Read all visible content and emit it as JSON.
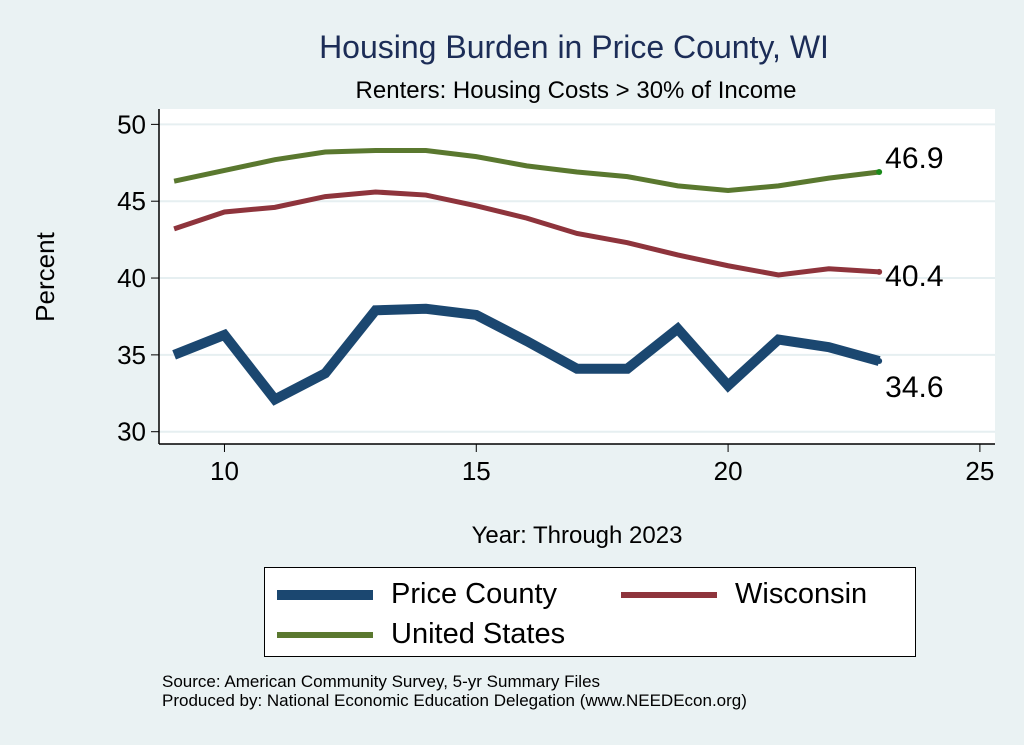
{
  "chart_data": {
    "type": "line",
    "title": "Housing Burden in Price County, WI",
    "subtitle": "Renters: Housing Costs > 30% of Income",
    "xlabel": "Year: Through 2023",
    "ylabel": "Percent",
    "xlim": [
      8.7,
      25.3
    ],
    "ylim": [
      29.2,
      51.0
    ],
    "xticks": [
      10,
      15,
      20,
      25
    ],
    "yticks": [
      30,
      35,
      40,
      45,
      50
    ],
    "grid": "horizontal",
    "legend_position": "bottom",
    "x": [
      9,
      10,
      11,
      12,
      13,
      14,
      15,
      16,
      17,
      18,
      19,
      20,
      21,
      22,
      23
    ],
    "series": [
      {
        "name": "Price County",
        "color": "#1b4770",
        "values": [
          35.0,
          36.3,
          32.1,
          33.8,
          37.9,
          38.0,
          37.6,
          35.9,
          34.1,
          34.1,
          36.7,
          33.0,
          36.0,
          35.5,
          34.6
        ],
        "end_label": "34.6",
        "end_label_position": "below"
      },
      {
        "name": "Wisconsin",
        "color": "#8e343c",
        "values": [
          43.2,
          44.3,
          44.6,
          45.3,
          45.6,
          45.4,
          44.7,
          43.9,
          42.9,
          42.3,
          41.5,
          40.8,
          40.2,
          40.6,
          40.4
        ],
        "end_label": "40.4",
        "end_label_position": "right"
      },
      {
        "name": "United States",
        "color": "#5a782f",
        "values": [
          46.3,
          47.0,
          47.7,
          48.2,
          48.3,
          48.3,
          47.9,
          47.3,
          46.9,
          46.6,
          46.0,
          45.7,
          46.0,
          46.5,
          46.9
        ],
        "end_label": "46.9",
        "end_label_position": "above"
      }
    ]
  },
  "legend": {
    "items": [
      {
        "label": "Price County",
        "color": "#1b4770"
      },
      {
        "label": "Wisconsin",
        "color": "#8e343c"
      },
      {
        "label": "United States",
        "color": "#5a782f"
      }
    ]
  },
  "footer": {
    "source": "Source: American Community Survey, 5-yr Summary Files",
    "produced_by": "Produced by: National Economic Education Delegation (www.NEEDEcon.org)"
  }
}
